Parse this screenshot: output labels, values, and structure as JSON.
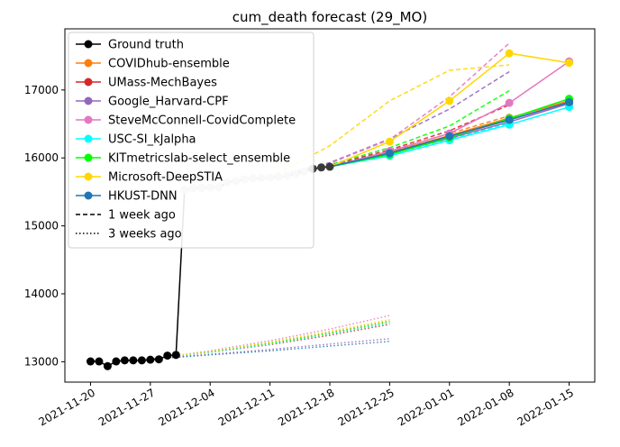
{
  "chart_data": {
    "type": "line",
    "title": "cum_death forecast (29_MO)",
    "xlabel": "",
    "ylabel": "",
    "x_ticks": [
      "2021-11-20",
      "2021-11-27",
      "2021-12-04",
      "2021-12-11",
      "2021-12-18",
      "2021-12-25",
      "2022-01-01",
      "2022-01-08",
      "2022-01-15"
    ],
    "y_ticks": [
      13000,
      14000,
      15000,
      16000,
      17000
    ],
    "xlim": [
      "2021-11-17",
      "2022-01-18"
    ],
    "ylim": [
      12700,
      17900
    ],
    "grid": false,
    "legend_position": "top-left",
    "legend": [
      {
        "label": "Ground truth",
        "color": "#000000",
        "style": "solid",
        "marker": true
      },
      {
        "label": "COVIDhub-ensemble",
        "color": "#ff7f0e",
        "style": "solid",
        "marker": true
      },
      {
        "label": "UMass-MechBayes",
        "color": "#d62728",
        "style": "solid",
        "marker": true
      },
      {
        "label": "Google_Harvard-CPF",
        "color": "#9467bd",
        "style": "solid",
        "marker": true
      },
      {
        "label": "SteveMcConnell-CovidComplete",
        "color": "#e377c2",
        "style": "solid",
        "marker": true
      },
      {
        "label": "USC-SI_kJalpha",
        "color": "#00ffff",
        "style": "solid",
        "marker": true
      },
      {
        "label": "KITmetricslab-select_ensemble",
        "color": "#00ff00",
        "style": "solid",
        "marker": true
      },
      {
        "label": "Microsoft-DeepSTIA",
        "color": "#ffd700",
        "style": "solid",
        "marker": true
      },
      {
        "label": "HKUST-DNN",
        "color": "#1f77b4",
        "style": "solid",
        "marker": true
      },
      {
        "label": "1 week ago",
        "color": "#000000",
        "style": "dashed",
        "marker": false
      },
      {
        "label": "3 weeks ago",
        "color": "#000000",
        "style": "dotted",
        "marker": false
      }
    ],
    "ground_truth": {
      "name": "Ground truth",
      "color": "#000000",
      "x": [
        "2021-11-20",
        "2021-11-21",
        "2021-11-22",
        "2021-11-23",
        "2021-11-24",
        "2021-11-25",
        "2021-11-26",
        "2021-11-27",
        "2021-11-28",
        "2021-11-29",
        "2021-11-30"
      ],
      "y": [
        13005,
        13005,
        12935,
        13005,
        13020,
        13020,
        13020,
        13030,
        13035,
        13090,
        13100
      ]
    },
    "ground_truth_recent": {
      "color": "#c8c8c8",
      "x": [
        "2021-12-01",
        "2021-12-02",
        "2021-12-03",
        "2021-12-04",
        "2021-12-05",
        "2021-12-06",
        "2021-12-07",
        "2021-12-08",
        "2021-12-09",
        "2021-12-10",
        "2021-12-11",
        "2021-12-12",
        "2021-12-13",
        "2021-12-14",
        "2021-12-15",
        "2021-12-16",
        "2021-12-17",
        "2021-12-18"
      ],
      "y": [
        15530,
        15555,
        15560,
        15565,
        15565,
        15640,
        15660,
        15685,
        15700,
        15705,
        15710,
        15720,
        15735,
        15760,
        15800,
        15840,
        15860,
        15870
      ],
      "dark_from_index": 15
    },
    "forecasts_current": [
      {
        "name": "COVIDhub-ensemble",
        "color": "#ff7f0e",
        "x": [
          "2021-12-18",
          "2021-12-25",
          "2022-01-01",
          "2022-01-08",
          "2022-01-15"
        ],
        "y": [
          15870,
          16080,
          16330,
          16590,
          16840
        ]
      },
      {
        "name": "UMass-MechBayes",
        "color": "#d62728",
        "x": [
          "2021-12-18",
          "2021-12-25",
          "2022-01-01",
          "2022-01-08",
          "2022-01-15"
        ],
        "y": [
          15870,
          16070,
          16310,
          16560,
          16820
        ]
      },
      {
        "name": "Google_Harvard-CPF",
        "color": "#9467bd",
        "x": [
          "2021-12-18",
          "2021-12-25",
          "2022-01-01",
          "2022-01-08",
          "2022-01-15"
        ],
        "y": [
          15870,
          16060,
          16290,
          16530,
          16800
        ]
      },
      {
        "name": "SteveMcConnell-CovidComplete",
        "color": "#e377c2",
        "x": [
          "2021-12-18",
          "2021-12-25",
          "2022-01-01",
          "2022-01-08",
          "2022-01-15"
        ],
        "y": [
          15870,
          16100,
          16360,
          16810,
          17420
        ]
      },
      {
        "name": "USC-SI_kJalpha",
        "color": "#00ffff",
        "x": [
          "2021-12-18",
          "2021-12-25",
          "2022-01-01",
          "2022-01-08",
          "2022-01-15"
        ],
        "y": [
          15870,
          16030,
          16260,
          16490,
          16750
        ]
      },
      {
        "name": "KITmetricslab-select_ensemble",
        "color": "#00ff00",
        "x": [
          "2021-12-18",
          "2021-12-25",
          "2022-01-01",
          "2022-01-08",
          "2022-01-15"
        ],
        "y": [
          15870,
          16050,
          16300,
          16580,
          16870
        ]
      },
      {
        "name": "Microsoft-DeepSTIA",
        "color": "#ffd700",
        "x": [
          "2021-12-18",
          "2021-12-25",
          "2022-01-01",
          "2022-01-08",
          "2022-01-15"
        ],
        "y": [
          15870,
          16240,
          16840,
          17540,
          17400
        ]
      },
      {
        "name": "HKUST-DNN",
        "color": "#1f77b4",
        "x": [
          "2021-12-18",
          "2021-12-25",
          "2022-01-01",
          "2022-01-08",
          "2022-01-15"
        ],
        "y": [
          15870,
          16070,
          16320,
          16560,
          16820
        ]
      }
    ],
    "forecasts_1_week_ago": [
      {
        "name": "COVIDhub-ensemble",
        "color": "#ff7f0e",
        "x": [
          "2021-12-11",
          "2021-12-18",
          "2021-12-25",
          "2022-01-01",
          "2022-01-08"
        ],
        "y": [
          15710,
          15880,
          16100,
          16360,
          16620
        ]
      },
      {
        "name": "UMass-MechBayes",
        "color": "#d62728",
        "x": [
          "2021-12-11",
          "2021-12-18",
          "2021-12-25",
          "2022-01-01",
          "2022-01-08"
        ],
        "y": [
          15710,
          15890,
          16120,
          16400,
          16780
        ]
      },
      {
        "name": "Google_Harvard-CPF",
        "color": "#9467bd",
        "x": [
          "2021-12-11",
          "2021-12-18",
          "2021-12-25",
          "2022-01-01",
          "2022-01-08"
        ],
        "y": [
          15710,
          15930,
          16280,
          16720,
          17270
        ]
      },
      {
        "name": "SteveMcConnell-CovidComplete",
        "color": "#e377c2",
        "x": [
          "2021-12-11",
          "2021-12-18",
          "2021-12-25",
          "2022-01-01",
          "2022-01-08"
        ],
        "y": [
          15710,
          15920,
          16270,
          16900,
          17690
        ]
      },
      {
        "name": "USC-SI_kJalpha",
        "color": "#00ffff",
        "x": [
          "2021-12-11",
          "2021-12-18",
          "2021-12-25",
          "2022-01-01",
          "2022-01-08"
        ],
        "y": [
          15710,
          15870,
          16060,
          16280,
          16510
        ]
      },
      {
        "name": "KITmetricslab-select_ensemble",
        "color": "#00ff00",
        "x": [
          "2021-12-11",
          "2021-12-18",
          "2021-12-25",
          "2022-01-01",
          "2022-01-08"
        ],
        "y": [
          15710,
          15900,
          16150,
          16470,
          16990
        ]
      },
      {
        "name": "Microsoft-DeepSTIA",
        "color": "#ffd700",
        "x": [
          "2021-12-11",
          "2021-12-18",
          "2021-12-25",
          "2022-01-01",
          "2022-01-08"
        ],
        "y": [
          15710,
          16180,
          16840,
          17290,
          17370
        ]
      },
      {
        "name": "HKUST-DNN",
        "color": "#1f77b4",
        "x": [
          "2021-12-11",
          "2021-12-18",
          "2021-12-25",
          "2022-01-01",
          "2022-01-08"
        ],
        "y": [
          15710,
          15880,
          16090,
          16320,
          16560
        ]
      }
    ],
    "forecasts_3_weeks_ago": [
      {
        "name": "COVIDhub-ensemble",
        "color": "#ff7f0e",
        "x": [
          "2021-11-27",
          "2021-12-04",
          "2021-12-11",
          "2021-12-18",
          "2021-12-25"
        ],
        "y": [
          13040,
          13150,
          13280,
          13430,
          13600
        ]
      },
      {
        "name": "UMass-MechBayes",
        "color": "#d62728",
        "x": [
          "2021-11-27",
          "2021-12-04",
          "2021-12-11",
          "2021-12-18",
          "2021-12-25"
        ],
        "y": [
          13040,
          13140,
          13250,
          13390,
          13550
        ]
      },
      {
        "name": "Google_Harvard-CPF",
        "color": "#9467bd",
        "x": [
          "2021-11-27",
          "2021-12-04",
          "2021-12-11",
          "2021-12-18",
          "2021-12-25"
        ],
        "y": [
          13040,
          13110,
          13180,
          13260,
          13340
        ]
      },
      {
        "name": "SteveMcConnell-CovidComplete",
        "color": "#e377c2",
        "x": [
          "2021-11-27",
          "2021-12-04",
          "2021-12-11",
          "2021-12-18",
          "2021-12-25"
        ],
        "y": [
          13040,
          13160,
          13310,
          13480,
          13680
        ]
      },
      {
        "name": "USC-SI_kJalpha",
        "color": "#00ffff",
        "x": [
          "2021-11-27",
          "2021-12-04",
          "2021-12-11",
          "2021-12-18",
          "2021-12-25"
        ],
        "y": [
          13040,
          13140,
          13260,
          13410,
          13570
        ]
      },
      {
        "name": "KITmetricslab-select_ensemble",
        "color": "#00ff00",
        "x": [
          "2021-11-27",
          "2021-12-04",
          "2021-12-11",
          "2021-12-18",
          "2021-12-25"
        ],
        "y": [
          13040,
          13150,
          13270,
          13420,
          13590
        ]
      },
      {
        "name": "Microsoft-DeepSTIA",
        "color": "#ffd700",
        "x": [
          "2021-11-27",
          "2021-12-04",
          "2021-12-11",
          "2021-12-18",
          "2021-12-25"
        ],
        "y": [
          13040,
          13150,
          13290,
          13450,
          13620
        ]
      },
      {
        "name": "HKUST-DNN",
        "color": "#1f77b4",
        "x": [
          "2021-11-27",
          "2021-12-04",
          "2021-12-11",
          "2021-12-18",
          "2021-12-25"
        ],
        "y": [
          13040,
          13100,
          13160,
          13230,
          13300
        ]
      }
    ]
  }
}
